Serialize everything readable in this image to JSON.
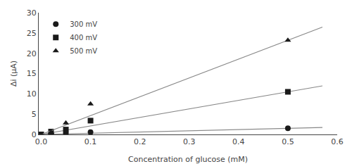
{
  "chart_data": {
    "type": "scatter",
    "xlabel": "Concentration of glucose (mM)",
    "ylabel": "Δi (μA)",
    "xlim": [
      -0.005,
      0.6
    ],
    "ylim": [
      0,
      30
    ],
    "xticks": [
      {
        "value": 0,
        "label": "0.0"
      },
      0.1,
      0.2,
      0.3,
      0.4,
      0.5,
      0.6
    ],
    "yticks": [
      0,
      5,
      10,
      15,
      20,
      25,
      30
    ],
    "grid": false,
    "legend": "upper left",
    "series": [
      {
        "type": "line",
        "color": "#888888",
        "x": [
          0.0,
          0.57
        ],
        "values": [
          0.0,
          1.71
        ]
      },
      {
        "name": "300 mV",
        "type": "scatter",
        "marker": "circle",
        "color": "#1a1a1a",
        "x": [
          0.0,
          0.02,
          0.05,
          0.1,
          0.5
        ],
        "values": [
          0.0,
          0.15,
          0.3,
          0.55,
          1.5
        ]
      },
      {
        "type": "line",
        "color": "#888888",
        "x": [
          0.0,
          0.57
        ],
        "values": [
          0.0,
          11.97
        ]
      },
      {
        "name": "400 mV",
        "type": "scatter",
        "marker": "square",
        "color": "#1a1a1a",
        "x": [
          0.0,
          0.02,
          0.05,
          0.1,
          0.5
        ],
        "values": [
          0.0,
          0.7,
          1.2,
          3.4,
          10.5
        ]
      },
      {
        "type": "line",
        "color": "#888888",
        "x": [
          0.0,
          0.57
        ],
        "values": [
          0.0,
          26.448
        ]
      },
      {
        "name": "500 mV",
        "type": "scatter",
        "marker": "triangle-up",
        "color": "#1a1a1a",
        "x": [
          0.0,
          0.02,
          0.05,
          0.1,
          0.5
        ],
        "values": [
          0.0,
          0.5,
          2.8,
          7.5,
          23.2
        ]
      }
    ]
  }
}
